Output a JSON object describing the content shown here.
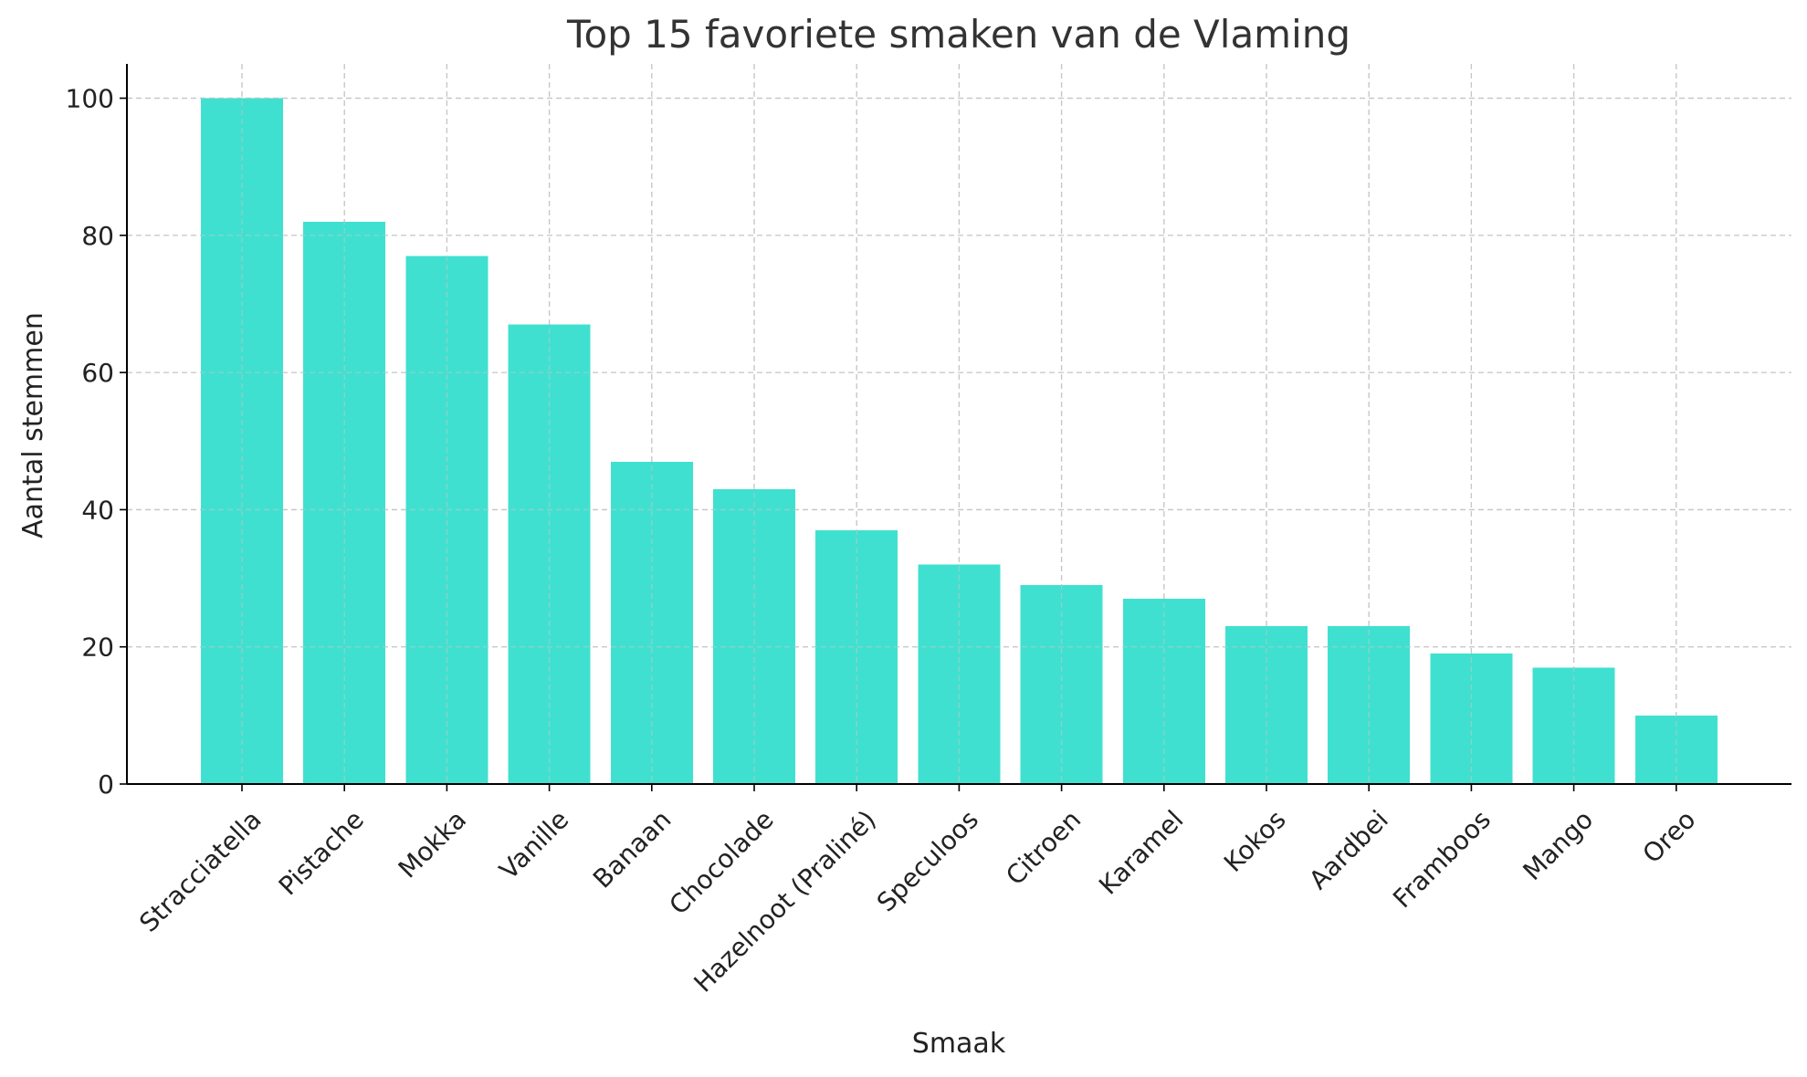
{
  "chart_data": {
    "type": "bar",
    "title": "Top 15 favoriete smaken van de Vlaming",
    "xlabel": "Smaak",
    "ylabel": "Aantal stemmen",
    "categories": [
      "Stracciatella",
      "Pistache",
      "Mokka",
      "Vanille",
      "Banaan",
      "Chocolade",
      "Hazelnoot (Praliné)",
      "Speculoos",
      "Citroen",
      "Karamel",
      "Kokos",
      "Aardbei",
      "Framboos",
      "Mango",
      "Oreo"
    ],
    "values": [
      100,
      82,
      77,
      67,
      47,
      43,
      37,
      32,
      29,
      27,
      23,
      23,
      19,
      17,
      10
    ],
    "ylim": [
      0,
      105
    ],
    "yticks": [
      0,
      20,
      40,
      60,
      80,
      100
    ],
    "grid": true,
    "bar_color": "#40E0D0"
  }
}
